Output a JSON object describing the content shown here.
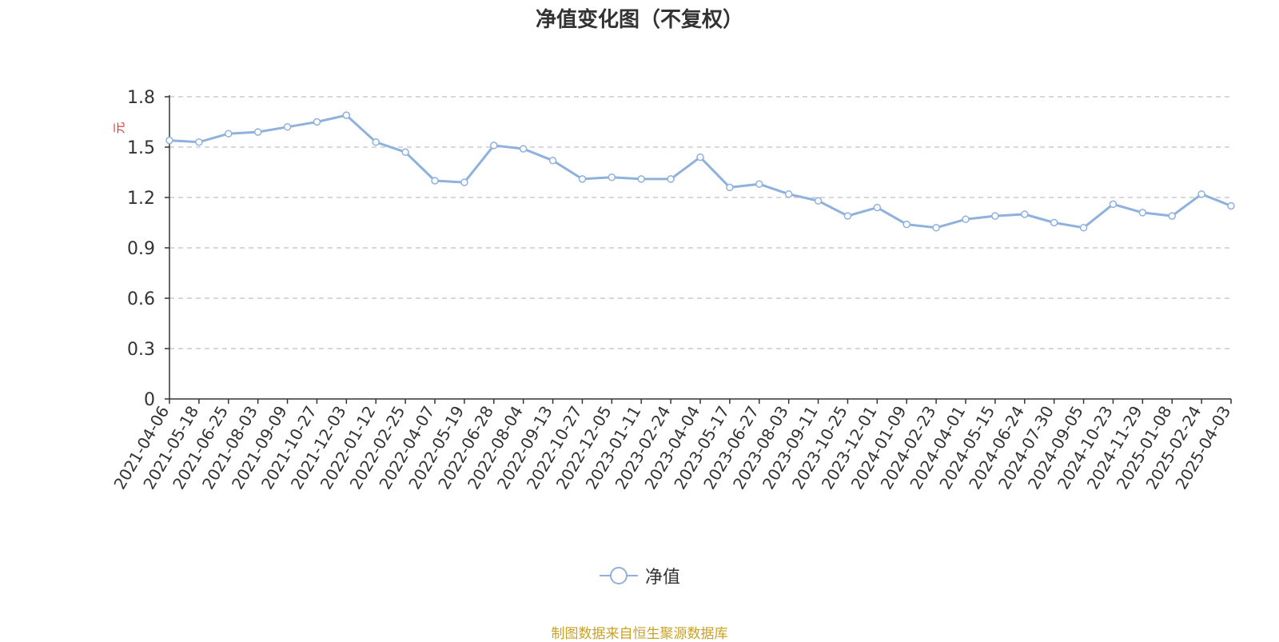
{
  "chart_data": {
    "type": "line",
    "title": "净值变化图（不复权）",
    "ylabel": "元",
    "ylim": [
      0,
      1.8
    ],
    "yticks": [
      "0",
      "0.3",
      "0.6",
      "0.9",
      "1.2",
      "1.5",
      "1.8"
    ],
    "grid": true,
    "legend_position": "bottom-center",
    "colors": {
      "series": "#8eb1de",
      "ylabel": "#e03030",
      "grid": "#cccccc",
      "source": "#c9a227"
    },
    "x": [
      "2021-04-06",
      "2021-05-18",
      "2021-06-25",
      "2021-08-03",
      "2021-09-09",
      "2021-10-27",
      "2021-12-03",
      "2022-01-12",
      "2022-02-25",
      "2022-04-07",
      "2022-05-19",
      "2022-06-28",
      "2022-08-04",
      "2022-09-13",
      "2022-10-27",
      "2022-12-05",
      "2023-01-11",
      "2023-02-24",
      "2023-04-04",
      "2023-05-17",
      "2023-06-27",
      "2023-08-03",
      "2023-09-11",
      "2023-10-25",
      "2023-12-01",
      "2024-01-09",
      "2024-02-23",
      "2024-04-01",
      "2024-05-15",
      "2024-06-24",
      "2024-07-30",
      "2024-09-05",
      "2024-10-23",
      "2024-11-29",
      "2025-01-08",
      "2025-02-24",
      "2025-04-03"
    ],
    "series": [
      {
        "name": "净值",
        "values": [
          1.54,
          1.53,
          1.58,
          1.59,
          1.62,
          1.65,
          1.69,
          1.53,
          1.47,
          1.3,
          1.29,
          1.51,
          1.49,
          1.42,
          1.31,
          1.32,
          1.31,
          1.31,
          1.44,
          1.26,
          1.28,
          1.22,
          1.18,
          1.09,
          1.14,
          1.04,
          1.02,
          1.07,
          1.09,
          1.1,
          1.05,
          1.02,
          1.16,
          1.11,
          1.09,
          1.22,
          1.15
        ]
      }
    ]
  },
  "legend": {
    "label": "净值"
  },
  "footer": {
    "source": "制图数据来自恒生聚源数据库"
  }
}
